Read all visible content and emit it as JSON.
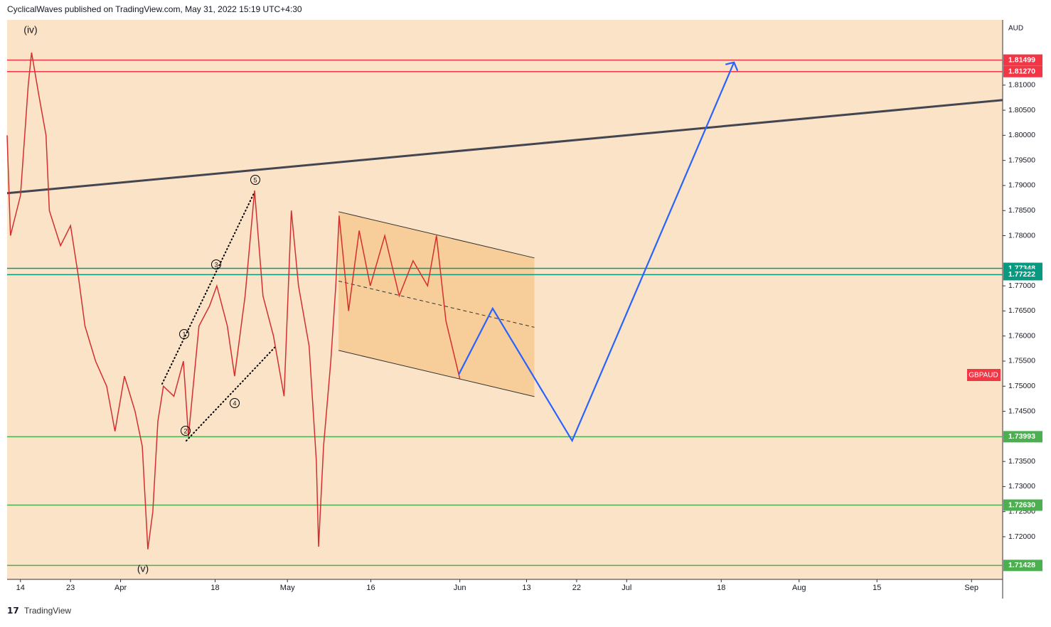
{
  "header": "CyclicalWaves published on TradingView.com, May 31, 2022 15:19 UTC+4:30",
  "footer": "TradingView",
  "chart_data": {
    "type": "line",
    "currency": "AUD",
    "symbol": "GBPAUD",
    "xlim": [
      -2.4,
      176.6
    ],
    "ylim": [
      1.7115,
      1.823
    ],
    "xticks": [
      {
        "value": 0,
        "label": "14"
      },
      {
        "value": 9,
        "label": "23"
      },
      {
        "value": 18,
        "label": "Apr"
      },
      {
        "value": 35,
        "label": "18"
      },
      {
        "value": 48,
        "label": "May"
      },
      {
        "value": 63,
        "label": "16"
      },
      {
        "value": 79,
        "label": "Jun"
      },
      {
        "value": 91,
        "label": "13"
      },
      {
        "value": 100,
        "label": "22"
      },
      {
        "value": 109,
        "label": "Jul"
      },
      {
        "value": 126,
        "label": "18"
      },
      {
        "value": 140,
        "label": "Aug"
      },
      {
        "value": 154,
        "label": "15"
      },
      {
        "value": 171,
        "label": "Sep"
      }
    ],
    "yticks": [
      {
        "value": 1.72,
        "label": "1.72000"
      },
      {
        "value": 1.725,
        "label": "1.72500"
      },
      {
        "value": 1.73,
        "label": "1.73000"
      },
      {
        "value": 1.735,
        "label": "1.73500"
      },
      {
        "value": 1.745,
        "label": "1.74500"
      },
      {
        "value": 1.75,
        "label": "1.75000"
      },
      {
        "value": 1.755,
        "label": "1.75500"
      },
      {
        "value": 1.76,
        "label": "1.76000"
      },
      {
        "value": 1.765,
        "label": "1.76500"
      },
      {
        "value": 1.77,
        "label": "1.77000"
      },
      {
        "value": 1.78,
        "label": "1.78000"
      },
      {
        "value": 1.785,
        "label": "1.78500"
      },
      {
        "value": 1.79,
        "label": "1.79000"
      },
      {
        "value": 1.795,
        "label": "1.79500"
      },
      {
        "value": 1.8,
        "label": "1.80000"
      },
      {
        "value": 1.805,
        "label": "1.80500"
      },
      {
        "value": 1.81,
        "label": "1.81000"
      }
    ],
    "price": {
      "color": "#d32f2f",
      "x": [
        -2.4,
        -1.8,
        0,
        1.4,
        2,
        3.3,
        4.6,
        5.2,
        7.2,
        9,
        10.4,
        11.6,
        13.5,
        15.5,
        17,
        18.7,
        20.6,
        21.9,
        22.9,
        23.8,
        24.7,
        25.7,
        27.6,
        29.3,
        30.2,
        32.1,
        34,
        35.3,
        37.2,
        38.5,
        40.4,
        42.1,
        43.6,
        45.5,
        47.4,
        48.7,
        50,
        51.9,
        53.2,
        53.6,
        54.5,
        55.8,
        56.7,
        57.3,
        59,
        60.9,
        62.9,
        65.5,
        68.1,
        70.6,
        73.2,
        74.8,
        76.5,
        77.8,
        79
      ],
      "values": [
        1.8,
        1.78,
        1.788,
        1.81,
        1.8165,
        1.808,
        1.8,
        1.785,
        1.778,
        1.782,
        1.772,
        1.762,
        1.755,
        1.75,
        1.741,
        1.752,
        1.745,
        1.738,
        1.7175,
        1.725,
        1.743,
        1.75,
        1.748,
        1.755,
        1.74,
        1.762,
        1.766,
        1.77,
        1.762,
        1.752,
        1.768,
        1.789,
        1.768,
        1.76,
        1.748,
        1.785,
        1.77,
        1.758,
        1.735,
        1.718,
        1.738,
        1.755,
        1.77,
        1.784,
        1.765,
        1.781,
        1.77,
        1.78,
        1.768,
        1.775,
        1.77,
        1.78,
        1.763,
        1.757,
        1.7515
      ]
    },
    "levels": [
      {
        "value": 1.81499,
        "color": "#f23645"
      },
      {
        "value": 1.8127,
        "label": "1.81270",
        "color": "#f23645"
      },
      {
        "value": 1.77348,
        "color": "#089981"
      },
      {
        "value": 1.77222,
        "color": "#089981"
      },
      {
        "value": 1.73993,
        "color": "#4caf50"
      },
      {
        "value": 1.7263,
        "label": "1.72630",
        "color": "#4caf50"
      },
      {
        "value": 1.71428,
        "color": "#4caf50"
      }
    ],
    "trendline": {
      "color": "#434651",
      "x": [
        -2.4,
        176.6
      ],
      "values": [
        1.78846,
        1.80702
      ]
    },
    "channel": {
      "color": "#f5c07a",
      "x": [
        57.2,
        92.4
      ],
      "upper": [
        1.78477,
        1.77556
      ],
      "lower": [
        1.75714,
        1.74793
      ]
    },
    "projection": {
      "color": "#2962ff",
      "x": [
        78.8,
        84.9,
        99.2,
        128.3
      ],
      "values": [
        1.75232,
        1.7655,
        1.73914,
        1.81454
      ]
    },
    "wave_labels": [
      "(iv)",
      "(v)",
      "1",
      "2",
      "3",
      "4",
      "5"
    ]
  }
}
